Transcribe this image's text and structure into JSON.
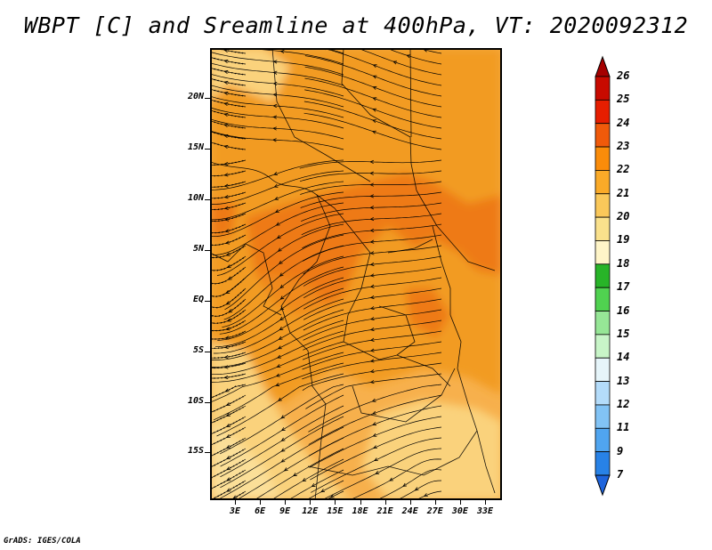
{
  "title": "WBPT [C] and Sreamline at 400hPa, VT: 2020092312",
  "credit": "GrADS: IGES/COLA",
  "map": {
    "variable": "WBPT [C]",
    "level": "400hPa",
    "field": "Sreamline",
    "valid_time": "2020092312",
    "lat_labels": [
      "20N",
      "15N",
      "10N",
      "5N",
      "EQ",
      "5S",
      "10S",
      "15S"
    ],
    "lon_labels": [
      "3E",
      "6E",
      "9E",
      "12E",
      "15E",
      "18E",
      "21E",
      "24E",
      "27E",
      "30E",
      "33E"
    ]
  },
  "colorbar": {
    "labels": [
      "26",
      "25",
      "24",
      "23",
      "22",
      "21",
      "20",
      "19",
      "18",
      "17",
      "16",
      "15",
      "14",
      "13",
      "12",
      "11",
      "9",
      "7"
    ],
    "colors": [
      "#a50000",
      "#c80a00",
      "#e61e00",
      "#f05a0a",
      "#fa8c0a",
      "#faaa28",
      "#fac85a",
      "#fae18c",
      "#fff5c8",
      "#28b428",
      "#50d250",
      "#96e696",
      "#c8f5c8",
      "#e6f5fa",
      "#b4dcfa",
      "#82c3f5",
      "#50a5f0",
      "#2882e6",
      "#1e64dc"
    ]
  }
}
